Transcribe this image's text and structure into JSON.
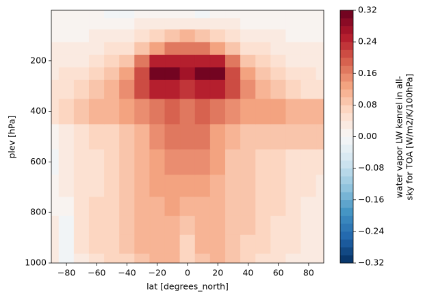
{
  "chart_data": {
    "type": "contourf",
    "x_label": "lat [degrees_north]",
    "y_label": "plev [hPa]",
    "colorbar_label": [
      "water vapor LW kenrel in all-",
      "sky for TOA [W/m2/K/100hPa]"
    ],
    "colormap": "RdBu_r",
    "levels": 32,
    "x": [
      -90,
      -80,
      -70,
      -60,
      -50,
      -40,
      -30,
      -20,
      -10,
      0,
      10,
      20,
      30,
      40,
      50,
      60,
      70,
      80,
      90
    ],
    "y": [
      1000,
      925,
      850,
      775,
      700,
      600,
      500,
      400,
      300,
      250,
      200,
      150,
      100,
      50,
      10
    ],
    "z": [
      [
        0.02,
        -0.01,
        0.03,
        0.05,
        0.06,
        0.07,
        0.09,
        0.1,
        0.1,
        0.07,
        0.09,
        0.1,
        0.08,
        0.06,
        0.05,
        0.04,
        0.03,
        0.02,
        0.02
      ],
      [
        0.02,
        -0.01,
        0.04,
        0.06,
        0.07,
        0.08,
        0.1,
        0.11,
        0.11,
        0.07,
        0.1,
        0.1,
        0.09,
        0.07,
        0.06,
        0.05,
        0.04,
        0.03,
        0.02
      ],
      [
        0.02,
        -0.01,
        0.04,
        0.06,
        0.07,
        0.09,
        0.1,
        0.11,
        0.11,
        0.08,
        0.1,
        0.1,
        0.09,
        0.08,
        0.06,
        0.05,
        0.04,
        0.03,
        0.02
      ],
      [
        0.01,
        0.0,
        0.04,
        0.06,
        0.07,
        0.09,
        0.1,
        0.11,
        0.12,
        0.1,
        0.11,
        0.11,
        0.09,
        0.08,
        0.07,
        0.06,
        0.04,
        0.03,
        0.02
      ],
      [
        0.0,
        0.02,
        0.04,
        0.05,
        0.07,
        0.08,
        0.1,
        0.12,
        0.13,
        0.12,
        0.13,
        0.11,
        0.09,
        0.08,
        0.07,
        0.06,
        0.05,
        0.04,
        0.03
      ],
      [
        -0.01,
        0.02,
        0.04,
        0.05,
        0.06,
        0.08,
        0.1,
        0.13,
        0.15,
        0.14,
        0.15,
        0.12,
        0.09,
        0.08,
        0.07,
        0.06,
        0.05,
        0.05,
        0.04
      ],
      [
        0.01,
        0.03,
        0.05,
        0.06,
        0.07,
        0.08,
        0.1,
        0.14,
        0.17,
        0.16,
        0.17,
        0.13,
        0.1,
        0.09,
        0.09,
        0.09,
        0.09,
        0.09,
        0.09
      ],
      [
        0.05,
        0.06,
        0.08,
        0.1,
        0.11,
        0.12,
        0.14,
        0.17,
        0.19,
        0.17,
        0.19,
        0.16,
        0.14,
        0.13,
        0.12,
        0.12,
        0.11,
        0.11,
        0.11
      ],
      [
        0.04,
        0.05,
        0.06,
        0.08,
        0.1,
        0.14,
        0.2,
        0.24,
        0.25,
        0.22,
        0.25,
        0.24,
        0.2,
        0.14,
        0.1,
        0.08,
        0.06,
        0.05,
        0.05
      ],
      [
        0.03,
        0.04,
        0.05,
        0.06,
        0.08,
        0.12,
        0.2,
        0.3,
        0.3,
        0.26,
        0.3,
        0.3,
        0.2,
        0.12,
        0.08,
        0.06,
        0.05,
        0.04,
        0.03
      ],
      [
        0.02,
        0.02,
        0.03,
        0.04,
        0.06,
        0.09,
        0.16,
        0.24,
        0.25,
        0.24,
        0.25,
        0.24,
        0.16,
        0.09,
        0.06,
        0.04,
        0.03,
        0.02,
        0.02
      ],
      [
        0.02,
        0.02,
        0.02,
        0.03,
        0.04,
        0.05,
        0.09,
        0.13,
        0.16,
        0.17,
        0.16,
        0.13,
        0.09,
        0.05,
        0.04,
        0.03,
        0.02,
        0.02,
        0.02
      ],
      [
        0.01,
        0.01,
        0.01,
        0.02,
        0.02,
        0.03,
        0.05,
        0.07,
        0.09,
        0.1,
        0.09,
        0.07,
        0.05,
        0.03,
        0.02,
        0.02,
        0.01,
        0.01,
        0.01
      ],
      [
        0.01,
        0.01,
        0.01,
        0.01,
        0.01,
        0.01,
        0.02,
        0.03,
        0.03,
        0.03,
        0.03,
        0.03,
        0.02,
        0.01,
        0.01,
        0.01,
        0.01,
        0.01,
        0.01
      ],
      [
        0.0,
        0.0,
        0.01,
        0.01,
        -0.01,
        -0.01,
        0.0,
        0.01,
        0.0,
        0.01,
        -0.01,
        0.0,
        0.01,
        0.0,
        0.01,
        0.01,
        0.01,
        0.01,
        0.0
      ]
    ],
    "xlim": [
      -90,
      90
    ],
    "xticks": [
      {
        "value": -80,
        "label": "−80"
      },
      {
        "value": -60,
        "label": "−60"
      },
      {
        "value": -40,
        "label": "−40"
      },
      {
        "value": -20,
        "label": "−20"
      },
      0,
      20,
      40,
      60,
      80
    ],
    "ylim": [
      1000,
      0
    ],
    "yticks": [
      200,
      400,
      600,
      800,
      1000
    ],
    "clim": [
      -0.32,
      0.32
    ],
    "cticks": [
      {
        "value": -0.32,
        "label": "−0.32"
      },
      {
        "value": -0.24,
        "label": "−0.24"
      },
      {
        "value": -0.16,
        "label": "−0.16"
      },
      {
        "value": -0.08,
        "label": "−0.08"
      },
      {
        "value": 0,
        "label": "0.00"
      },
      0.08,
      0.16,
      0.24,
      0.32
    ]
  }
}
